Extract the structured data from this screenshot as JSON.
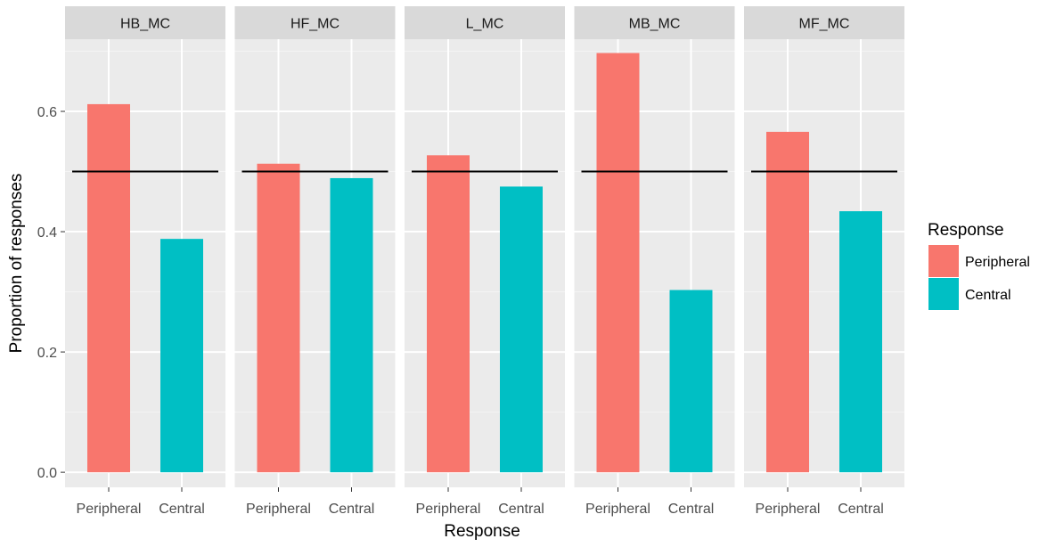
{
  "chart_data": {
    "type": "bar",
    "facet_type": "facet_wrap",
    "xlabel": "Response",
    "ylabel": "Proportion of responses",
    "ylim": [
      -0.025,
      0.72
    ],
    "y_ticks": [
      0.0,
      0.2,
      0.4,
      0.6
    ],
    "y_tick_labels": [
      "0.0",
      "0.2",
      "0.4",
      "0.6"
    ],
    "reference_line": 0.5,
    "categories": [
      "Peripheral",
      "Central"
    ],
    "legend": {
      "title": "Response",
      "placement": "right",
      "entries": [
        {
          "label": "Peripheral",
          "color": "#F8766D"
        },
        {
          "label": "Central",
          "color": "#00BFC4"
        }
      ]
    },
    "panels": [
      {
        "label": "HB_MC",
        "values": [
          0.612,
          0.388
        ]
      },
      {
        "label": "HF_MC",
        "values": [
          0.513,
          0.489
        ]
      },
      {
        "label": "L_MC",
        "values": [
          0.527,
          0.475
        ]
      },
      {
        "label": "MB_MC",
        "values": [
          0.697,
          0.303
        ]
      },
      {
        "label": "MF_MC",
        "values": [
          0.566,
          0.434
        ]
      }
    ],
    "colors": {
      "panel_background": "#EBEBEB",
      "strip_background": "#D9D9D9",
      "grid_major": "#FFFFFF",
      "grid_minor": "#F4F4F4",
      "reference_line": "#000000",
      "text": "#4D4D4D",
      "axis_title": "#000000"
    }
  }
}
